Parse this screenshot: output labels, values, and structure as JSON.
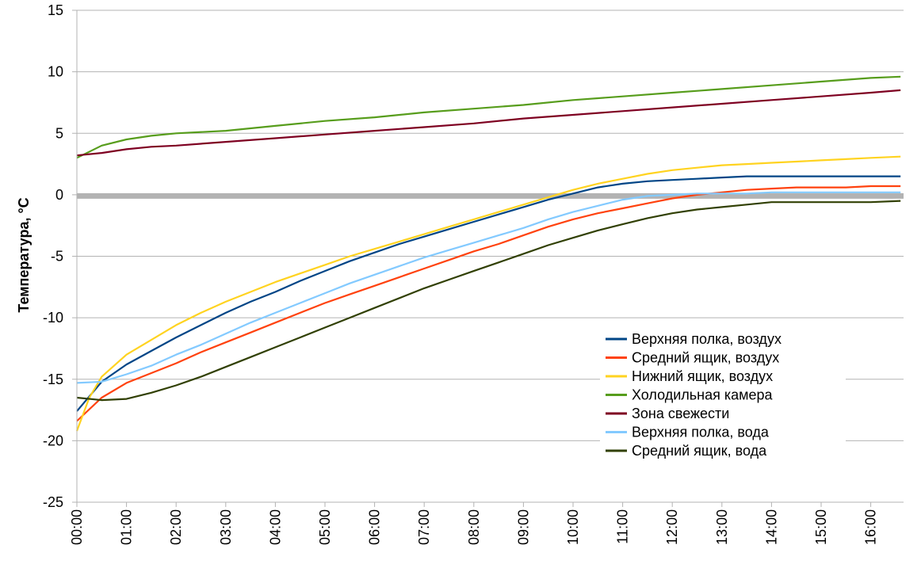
{
  "chart_data": {
    "type": "line",
    "title": "",
    "xlabel": "",
    "ylabel": "Температура, °С",
    "ylim": [
      -25,
      15
    ],
    "yticks": [
      15,
      10,
      5,
      0,
      -5,
      -10,
      -15,
      -20,
      -25
    ],
    "xticks": [
      "00:00",
      "01:00",
      "02:00",
      "03:00",
      "04:00",
      "05:00",
      "06:00",
      "07:00",
      "08:00",
      "09:00",
      "10:00",
      "11:00",
      "12:00",
      "13:00",
      "14:00",
      "15:00",
      "16:00"
    ],
    "xlim_hours": [
      0,
      16.6
    ],
    "grid": "horizontal",
    "legend_position": "lower-right",
    "reference_band": {
      "value": -0.1,
      "color": "#b3b3b3"
    },
    "series": [
      {
        "name": "Верхняя полка, воздух",
        "color": "#004586",
        "x": [
          0,
          0.5,
          1,
          1.5,
          2,
          2.5,
          3,
          3.5,
          4,
          4.5,
          5,
          5.5,
          6,
          6.5,
          7,
          7.5,
          8,
          8.5,
          9,
          9.5,
          10,
          10.5,
          11,
          11.5,
          12,
          12.5,
          13,
          13.5,
          14,
          14.5,
          15,
          15.5,
          16,
          16.6
        ],
        "values": [
          -17.6,
          -15.2,
          -13.8,
          -12.7,
          -11.6,
          -10.6,
          -9.6,
          -8.7,
          -7.9,
          -7.0,
          -6.2,
          -5.4,
          -4.7,
          -4.0,
          -3.4,
          -2.8,
          -2.2,
          -1.6,
          -1.0,
          -0.4,
          0.1,
          0.6,
          0.9,
          1.1,
          1.2,
          1.3,
          1.4,
          1.5,
          1.5,
          1.5,
          1.5,
          1.5,
          1.5,
          1.5
        ]
      },
      {
        "name": "Средний ящик, воздух",
        "color": "#ff420e",
        "x": [
          0,
          0.5,
          1,
          1.5,
          2,
          2.5,
          3,
          3.5,
          4,
          4.5,
          5,
          5.5,
          6,
          6.5,
          7,
          7.5,
          8,
          8.5,
          9,
          9.5,
          10,
          10.5,
          11,
          11.5,
          12,
          12.5,
          13,
          13.5,
          14,
          14.5,
          15,
          15.5,
          16,
          16.6
        ],
        "values": [
          -18.4,
          -16.5,
          -15.3,
          -14.5,
          -13.7,
          -12.8,
          -12.0,
          -11.2,
          -10.4,
          -9.6,
          -8.8,
          -8.1,
          -7.4,
          -6.7,
          -6.0,
          -5.3,
          -4.6,
          -4.0,
          -3.3,
          -2.6,
          -2.0,
          -1.5,
          -1.1,
          -0.7,
          -0.3,
          0.0,
          0.2,
          0.4,
          0.5,
          0.6,
          0.6,
          0.6,
          0.7,
          0.7
        ]
      },
      {
        "name": "Нижний ящик, воздух",
        "color": "#ffd320",
        "x": [
          0,
          0.25,
          0.5,
          1,
          1.5,
          2,
          2.5,
          3,
          3.5,
          4,
          4.5,
          5,
          5.5,
          6,
          6.5,
          7,
          7.5,
          8,
          8.5,
          9,
          9.5,
          10,
          10.5,
          11,
          11.5,
          12,
          12.5,
          13,
          13.5,
          14,
          14.5,
          15,
          15.5,
          16,
          16.6
        ],
        "values": [
          -19.2,
          -16.5,
          -14.8,
          -13.0,
          -11.8,
          -10.6,
          -9.6,
          -8.7,
          -7.9,
          -7.1,
          -6.4,
          -5.7,
          -5.0,
          -4.4,
          -3.8,
          -3.2,
          -2.6,
          -2.0,
          -1.4,
          -0.8,
          -0.2,
          0.4,
          0.9,
          1.3,
          1.7,
          2.0,
          2.2,
          2.4,
          2.5,
          2.6,
          2.7,
          2.8,
          2.9,
          3.0,
          3.1
        ]
      },
      {
        "name": "Холодильная камера",
        "color": "#579d1c",
        "x": [
          0,
          0.5,
          1,
          1.5,
          2,
          3,
          4,
          5,
          6,
          7,
          8,
          9,
          10,
          11,
          12,
          13,
          14,
          15,
          16,
          16.6
        ],
        "values": [
          3.0,
          4.0,
          4.5,
          4.8,
          5.0,
          5.2,
          5.6,
          6.0,
          6.3,
          6.7,
          7.0,
          7.3,
          7.7,
          8.0,
          8.3,
          8.6,
          8.9,
          9.2,
          9.5,
          9.6
        ]
      },
      {
        "name": "Зона свежести",
        "color": "#7e0021",
        "x": [
          0,
          0.5,
          1,
          1.5,
          2,
          3,
          4,
          5,
          6,
          7,
          8,
          9,
          10,
          11,
          12,
          13,
          14,
          15,
          16,
          16.6
        ],
        "values": [
          3.2,
          3.4,
          3.7,
          3.9,
          4.0,
          4.3,
          4.6,
          4.9,
          5.2,
          5.5,
          5.8,
          6.2,
          6.5,
          6.8,
          7.1,
          7.4,
          7.7,
          8.0,
          8.3,
          8.5
        ]
      },
      {
        "name": "Верхняя полка, вода",
        "color": "#83caff",
        "x": [
          0,
          0.5,
          1,
          1.5,
          2,
          2.5,
          3,
          3.5,
          4,
          4.5,
          5,
          5.5,
          6,
          6.5,
          7,
          7.5,
          8,
          8.5,
          9,
          9.5,
          10,
          10.5,
          11,
          11.5,
          12,
          12.5,
          13,
          13.5,
          14,
          14.5,
          15,
          15.5,
          16,
          16.6
        ],
        "values": [
          -15.3,
          -15.2,
          -14.6,
          -13.9,
          -13.0,
          -12.2,
          -11.3,
          -10.4,
          -9.6,
          -8.8,
          -8.0,
          -7.2,
          -6.5,
          -5.8,
          -5.1,
          -4.5,
          -3.9,
          -3.3,
          -2.7,
          -2.0,
          -1.4,
          -0.9,
          -0.4,
          -0.1,
          0.0,
          0.1,
          0.1,
          0.1,
          0.2,
          0.2,
          0.2,
          0.2,
          0.2,
          0.2
        ]
      },
      {
        "name": "Средний ящик, вода",
        "color": "#314004",
        "x": [
          0,
          0.5,
          1,
          1.5,
          2,
          2.5,
          3,
          3.5,
          4,
          4.5,
          5,
          5.5,
          6,
          6.5,
          7,
          7.5,
          8,
          8.5,
          9,
          9.5,
          10,
          10.5,
          11,
          11.5,
          12,
          12.5,
          13,
          13.5,
          14,
          14.5,
          15,
          15.5,
          16,
          16.6
        ],
        "values": [
          -16.5,
          -16.7,
          -16.6,
          -16.1,
          -15.5,
          -14.8,
          -14.0,
          -13.2,
          -12.4,
          -11.6,
          -10.8,
          -10.0,
          -9.2,
          -8.4,
          -7.6,
          -6.9,
          -6.2,
          -5.5,
          -4.8,
          -4.1,
          -3.5,
          -2.9,
          -2.4,
          -1.9,
          -1.5,
          -1.2,
          -1.0,
          -0.8,
          -0.6,
          -0.6,
          -0.6,
          -0.6,
          -0.6,
          -0.5
        ]
      }
    ]
  }
}
